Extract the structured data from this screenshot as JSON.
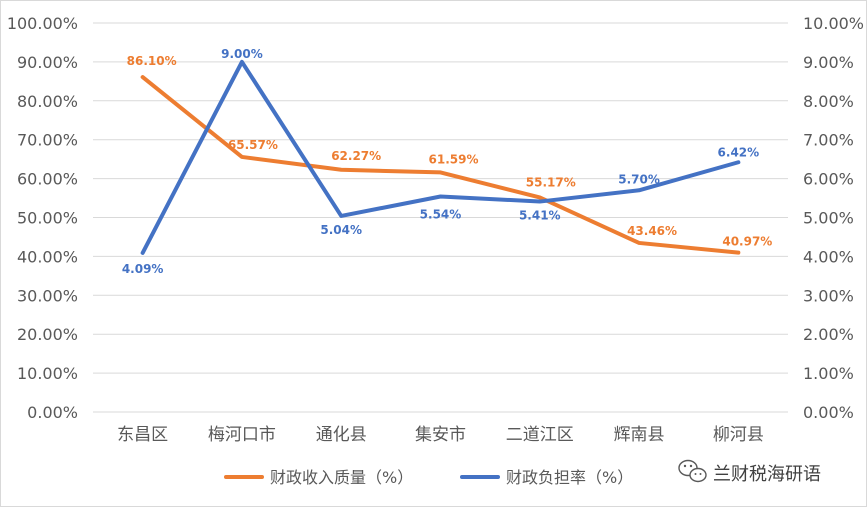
{
  "chart_data": {
    "type": "line",
    "title": "",
    "categories": [
      "东昌区",
      "梅河口市",
      "通化县",
      "集安市",
      "二道江区",
      "辉南县",
      "柳河县"
    ],
    "series": [
      {
        "name": "财政收入质量（%）",
        "axis": "left",
        "color": "#ED7D31",
        "values": [
          86.1,
          65.57,
          62.27,
          61.59,
          55.17,
          43.46,
          40.97
        ],
        "labels": [
          "86.10%",
          "65.57%",
          "62.27%",
          "61.59%",
          "55.17%",
          "43.46%",
          "40.97%"
        ]
      },
      {
        "name": "财政负担率（%）",
        "axis": "right",
        "color": "#4472C4",
        "values": [
          4.09,
          9.0,
          5.04,
          5.54,
          5.41,
          5.7,
          6.42
        ],
        "labels": [
          "4.09%",
          "9.00%",
          "5.04%",
          "5.54%",
          "5.41%",
          "5.70%",
          "6.42%"
        ]
      }
    ],
    "y_left": {
      "ylim": [
        0,
        100
      ],
      "ticks": [
        0,
        10,
        20,
        30,
        40,
        50,
        60,
        70,
        80,
        90,
        100
      ],
      "tick_labels": [
        "0.00%",
        "10.00%",
        "20.00%",
        "30.00%",
        "40.00%",
        "50.00%",
        "60.00%",
        "70.00%",
        "80.00%",
        "90.00%",
        "100.00%"
      ]
    },
    "y_right": {
      "ylim": [
        0,
        10
      ],
      "ticks": [
        0,
        1,
        2,
        3,
        4,
        5,
        6,
        7,
        8,
        9,
        10
      ],
      "tick_labels": [
        "0.00%",
        "1.00%",
        "2.00%",
        "3.00%",
        "4.00%",
        "5.00%",
        "6.00%",
        "7.00%",
        "8.00%",
        "9.00%",
        "10.00%"
      ]
    },
    "grid": true,
    "legend_position": "bottom"
  },
  "watermark": {
    "text": "兰财税海研语",
    "icon": "wechat-icon"
  }
}
